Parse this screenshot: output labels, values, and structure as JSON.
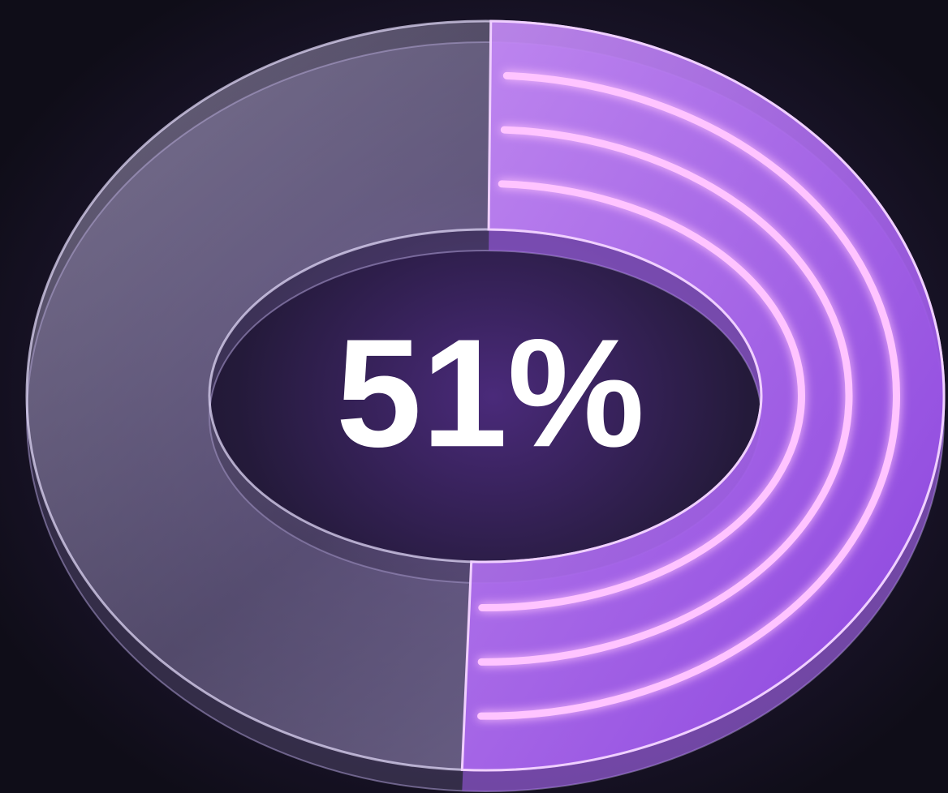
{
  "chart_data": {
    "type": "donut",
    "values": [
      51
    ],
    "value_labels": [
      "51%"
    ],
    "ylim": [
      0,
      100
    ],
    "color": "#a45cf0"
  }
}
